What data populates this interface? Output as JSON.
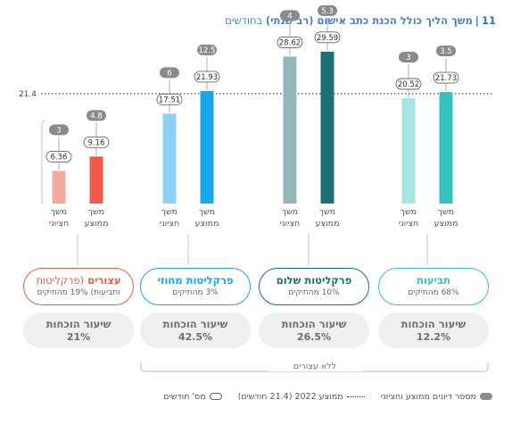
{
  "title": {
    "number": "11",
    "separator": "|",
    "main": "משך הליך כולל הכנת כתב אישום (רב שנתי)",
    "suffix": "בחודשים"
  },
  "chart_data": {
    "type": "bar",
    "reference_line": {
      "value": 21.4,
      "label": "21.4"
    },
    "ylim": [
      0,
      32
    ],
    "bar_labels": {
      "mean": "משך\nממוצע",
      "median": "משך\nחציוני"
    },
    "groups": [
      {
        "id": "detainees",
        "name": "עצורים",
        "name_suffix": "(פרקליטות ותביעות) 19% מהתיקים",
        "name_suffix_line1": "(פרקליטות",
        "name_suffix_line2": "ותביעות) 19% מהתיקים",
        "mean": 9.16,
        "median": 6.36,
        "mean_cases": "4.8",
        "median_cases": "3",
        "mean_color": "#f05a48",
        "median_color": "#f5a89e",
        "accent": "#f05a48",
        "conviction_label": "שיעור הוכחות",
        "conviction_rate": "21%"
      },
      {
        "id": "district",
        "name": "פרקליטות מחוזי",
        "subtitle": "3% מהתיקים",
        "mean": 21.93,
        "median": 17.51,
        "mean_cases": "12.5",
        "median_cases": "6",
        "mean_color": "#1aa7ec",
        "median_color": "#8fd1f5",
        "accent": "#1aa7ec",
        "conviction_label": "שיעור הוכחות",
        "conviction_rate": "42.5%"
      },
      {
        "id": "peace",
        "name": "פרקליטות שלום",
        "subtitle": "10% מהתיקים",
        "mean": 29.59,
        "median": 28.62,
        "mean_cases": "5.3",
        "median_cases": "4",
        "mean_color": "#1d6f73",
        "median_color": "#95b7b9",
        "accent": "#1d6f73",
        "conviction_label": "שיעור הוכחות",
        "conviction_rate": "26.5%"
      },
      {
        "id": "prosecution",
        "name": "תביעות",
        "subtitle": "68% מהתיקים",
        "mean": 21.73,
        "median": 20.52,
        "mean_cases": "3.5",
        "median_cases": "3",
        "mean_color": "#35c3c1",
        "median_color": "#a5e6e4",
        "accent": "#35c3c1",
        "conviction_label": "שיעור הוכחות",
        "conviction_rate": "12.2%"
      }
    ]
  },
  "no_detainees_label": "ללא עצורים",
  "legend": {
    "cases": "מספר דיונים ממוצע וחציוני",
    "average": "ממוצע 2022 (21.4 חודשים)",
    "months": "מס' חודשים"
  }
}
